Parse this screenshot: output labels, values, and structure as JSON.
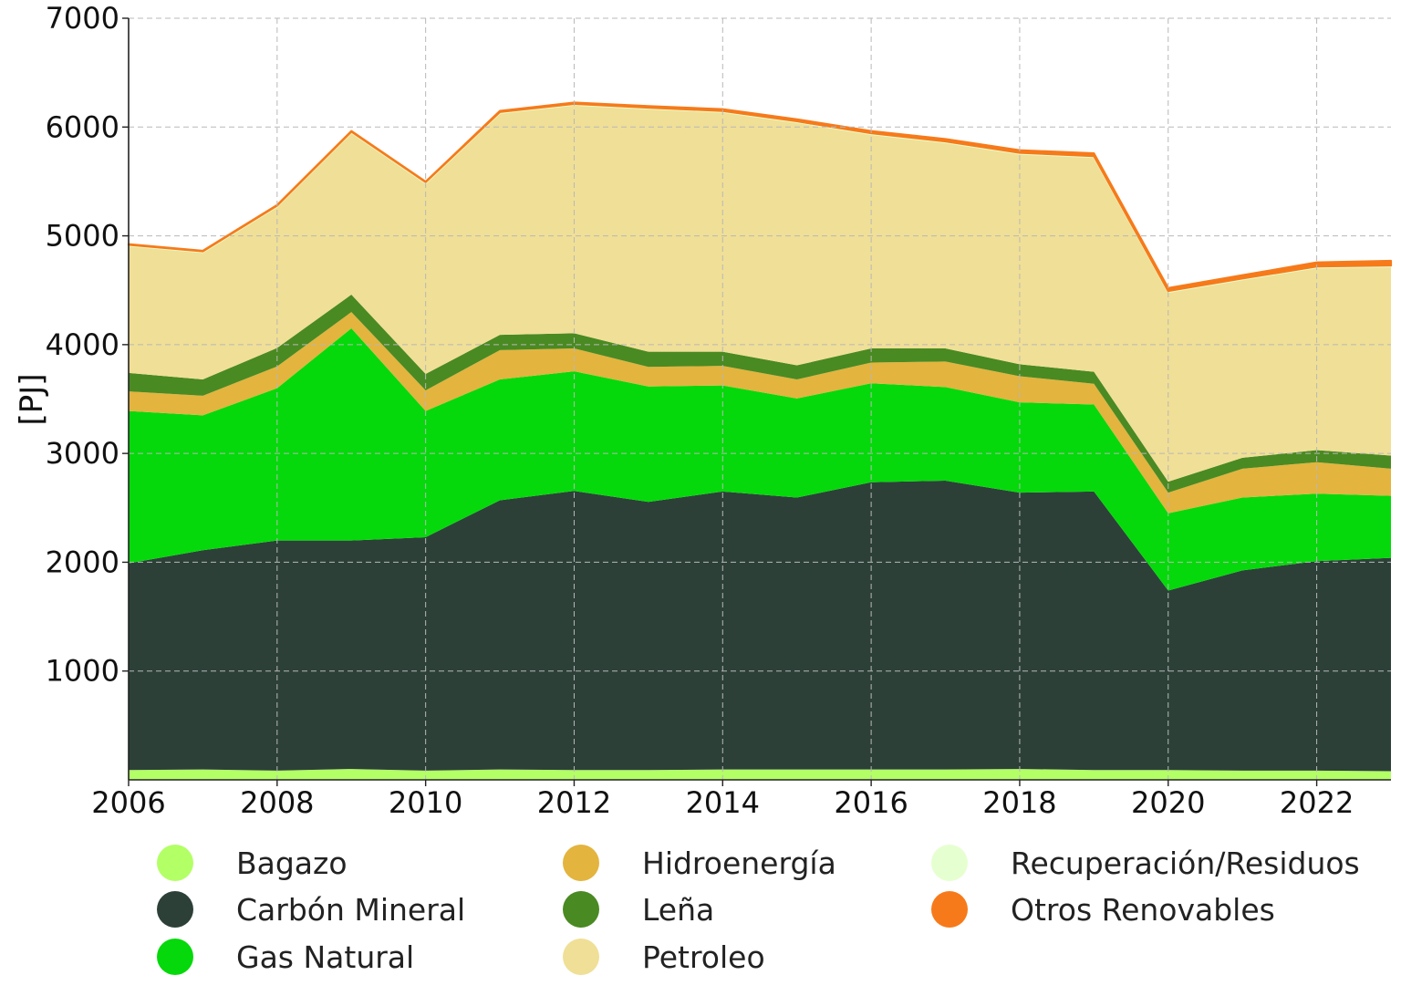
{
  "chart_data": {
    "type": "area",
    "stacked": true,
    "ylabel": "[PJ]",
    "ylim": [
      0,
      7000
    ],
    "xlim": [
      2006,
      2023
    ],
    "y_ticks": [
      1000,
      2000,
      3000,
      4000,
      5000,
      6000,
      7000
    ],
    "x_ticks": [
      2006,
      2008,
      2010,
      2012,
      2014,
      2016,
      2018,
      2020,
      2022
    ],
    "grid": true,
    "legend_position": "bottom",
    "x": [
      2006,
      2007,
      2008,
      2009,
      2010,
      2011,
      2012,
      2013,
      2014,
      2015,
      2016,
      2017,
      2018,
      2019,
      2020,
      2021,
      2022,
      2023
    ],
    "series": [
      {
        "name": "Bagazo",
        "color": "#b3ff66",
        "values": [
          90,
          95,
          85,
          100,
          85,
          95,
          90,
          90,
          95,
          95,
          95,
          95,
          100,
          90,
          90,
          85,
          85,
          80
        ]
      },
      {
        "name": "Carbón Mineral",
        "color": "#2c4038",
        "values": [
          1900,
          2015,
          2115,
          2100,
          2145,
          2475,
          2565,
          2465,
          2555,
          2500,
          2640,
          2655,
          2540,
          2560,
          1650,
          1840,
          1925,
          1960
        ]
      },
      {
        "name": "Gas Natural",
        "color": "#05d90b",
        "values": [
          1400,
          1240,
          1400,
          1950,
          1160,
          1110,
          1100,
          1060,
          975,
          910,
          910,
          860,
          830,
          800,
          710,
          670,
          620,
          570
        ]
      },
      {
        "name": "Hidroenergía",
        "color": "#e3b43e",
        "values": [
          180,
          180,
          200,
          150,
          190,
          270,
          210,
          180,
          180,
          175,
          190,
          235,
          240,
          190,
          190,
          265,
          290,
          250
        ]
      },
      {
        "name": "Leña",
        "color": "#4a8a22",
        "values": [
          170,
          150,
          170,
          160,
          150,
          140,
          140,
          140,
          130,
          130,
          130,
          120,
          110,
          110,
          100,
          100,
          110,
          120
        ]
      },
      {
        "name": "Petroleo",
        "color": "#f0df96",
        "values": [
          1170,
          1170,
          1300,
          1490,
          1755,
          2040,
          2100,
          2235,
          2205,
          2235,
          1970,
          1895,
          1935,
          1975,
          1745,
          1640,
          1680,
          1740
        ]
      },
      {
        "name": "Recuperación/Residuos",
        "color": "#e6ffd0",
        "values": [
          8,
          8,
          8,
          8,
          8,
          8,
          8,
          8,
          8,
          8,
          8,
          8,
          8,
          8,
          8,
          8,
          8,
          8
        ]
      },
      {
        "name": "Otros Renovables",
        "color": "#f77a1a",
        "values": [
          5,
          5,
          5,
          5,
          5,
          10,
          12,
          14,
          16,
          18,
          20,
          22,
          24,
          25,
          27,
          30,
          38,
          42
        ]
      }
    ]
  }
}
